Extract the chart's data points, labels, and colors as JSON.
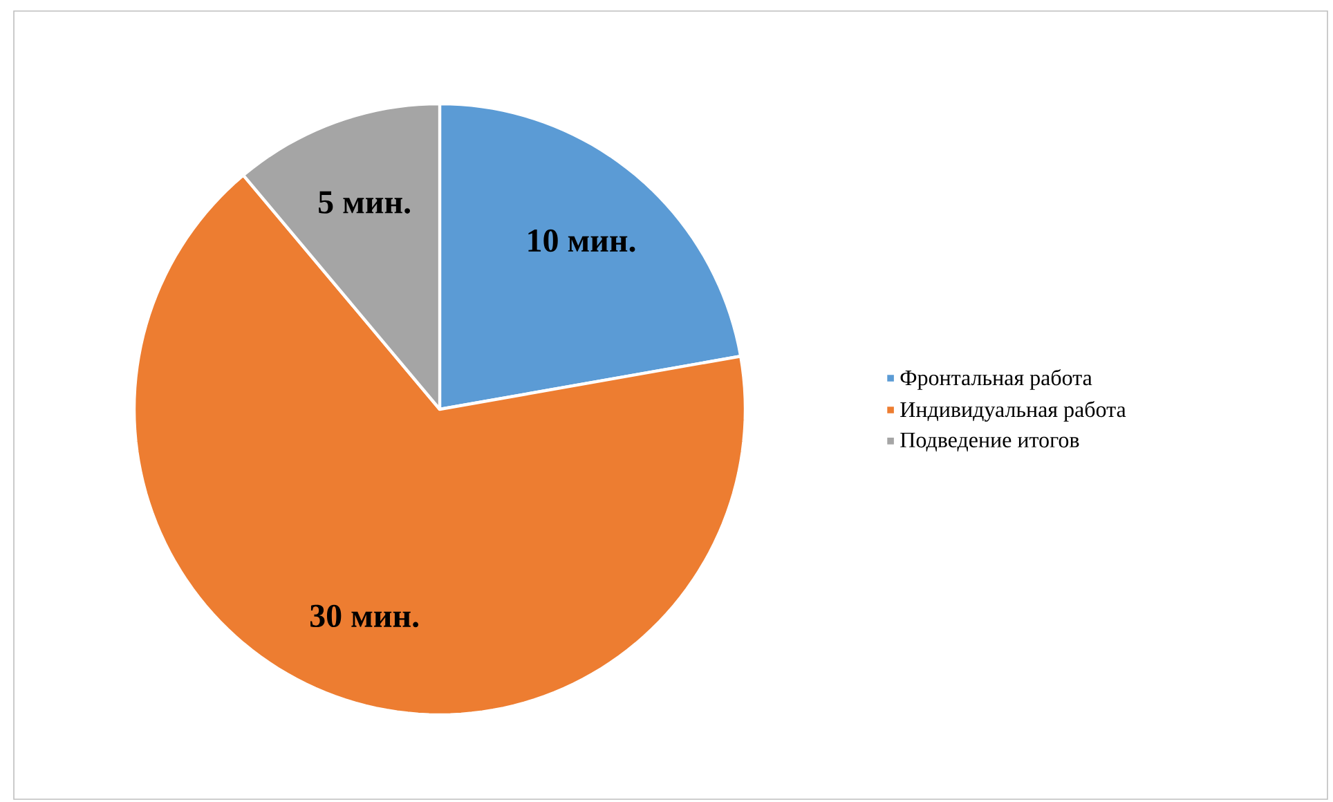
{
  "chart_data": {
    "type": "pie",
    "categories": [
      "Фронтальная работа",
      "Индивидуальная работа",
      "Подведение итогов"
    ],
    "values": [
      10,
      30,
      5
    ],
    "colors": [
      "#5b9bd5",
      "#ed7d31",
      "#a5a5a5"
    ],
    "value_labels": [
      "10 мин.",
      "30 мин.",
      "5 мин."
    ],
    "legend": "right"
  }
}
